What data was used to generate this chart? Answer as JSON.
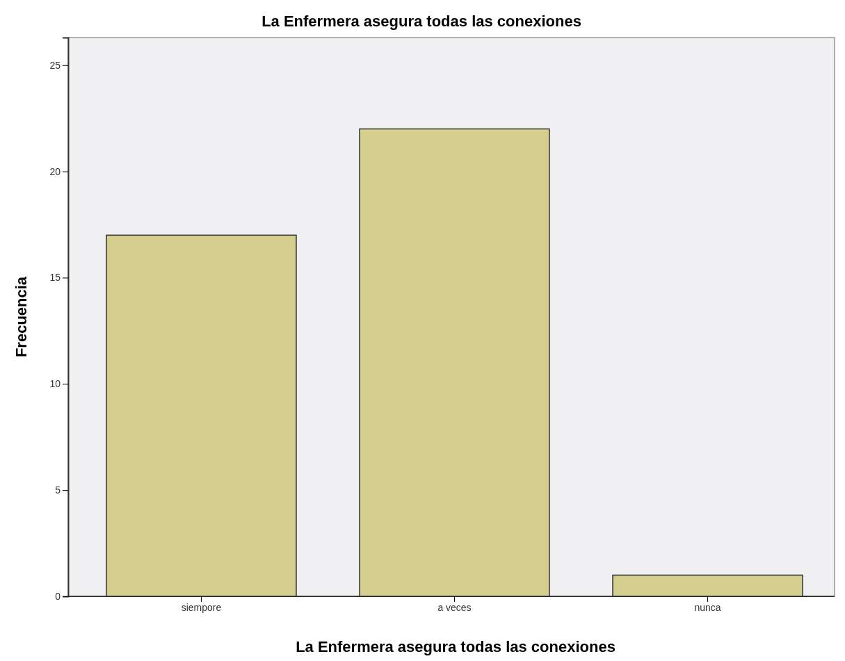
{
  "chart_data": {
    "type": "bar",
    "title": "La Enfermera asegura todas las conexiones",
    "xlabel": "La Enfermera asegura todas las conexiones",
    "ylabel": "Frecuencia",
    "categories": [
      "siempore",
      "a veces",
      "nunca"
    ],
    "values": [
      17,
      22,
      1
    ],
    "color": "#d4cf8f",
    "ylim": [
      0,
      26.3
    ],
    "yticks": [
      0,
      5,
      10,
      15,
      20,
      25
    ],
    "grid": false
  }
}
